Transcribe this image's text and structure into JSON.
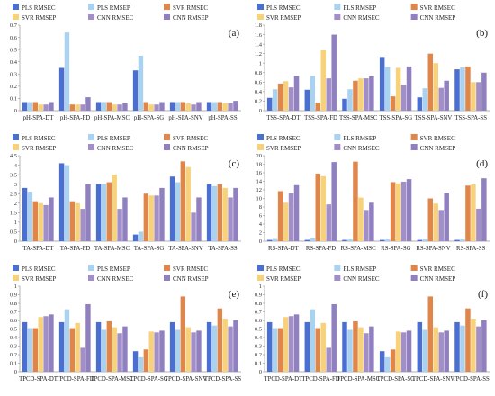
{
  "colors": [
    "#4A6FD0",
    "#A9D1F0",
    "#E0864A",
    "#F8D27A",
    "#A38FC8",
    "#9080C0"
  ],
  "legend_labels": [
    "PLS RMSEC",
    "PLS RMSEP",
    "SVR RMSEC",
    "SVR RMSEP",
    "CNN RMSEC",
    "CNN RMSEP"
  ],
  "chart_data": [
    {
      "type": "bar",
      "panel_label": "(a)",
      "categories": [
        "pH-SPA-DT",
        "pH-SPA-FD",
        "pH-SPA-MSC",
        "pH-SPA-SG",
        "pH-SPA-SNV",
        "pH-SPA-SS"
      ],
      "ylim": [
        0,
        0.7
      ],
      "yticks": [
        0,
        0.1,
        0.2,
        0.3,
        0.4,
        0.5,
        0.6,
        0.7
      ],
      "series": [
        {
          "name": "PLS RMSEC",
          "values": [
            0.07,
            0.35,
            0.07,
            0.33,
            0.07,
            0.07
          ]
        },
        {
          "name": "PLS RMSEP",
          "values": [
            0.07,
            0.64,
            0.07,
            0.45,
            0.07,
            0.07
          ]
        },
        {
          "name": "SVR RMSEC",
          "values": [
            0.07,
            0.05,
            0.07,
            0.07,
            0.07,
            0.07
          ]
        },
        {
          "name": "SVR RMSEP",
          "values": [
            0.05,
            0.05,
            0.05,
            0.05,
            0.06,
            0.06
          ]
        },
        {
          "name": "CNN RMSEC",
          "values": [
            0.05,
            0.05,
            0.05,
            0.05,
            0.05,
            0.06
          ]
        },
        {
          "name": "CNN RMSEP",
          "values": [
            0.07,
            0.11,
            0.06,
            0.07,
            0.07,
            0.08
          ]
        }
      ]
    },
    {
      "type": "bar",
      "panel_label": "(b)",
      "categories": [
        "TSS-SPA-DT",
        "TSS-SPA-FD",
        "TSS-SPA-MSC",
        "TSS-SPA-SG",
        "TSS-SPA-SNV",
        "TSS-SPA-SS"
      ],
      "ylim": [
        0,
        1.8
      ],
      "yticks": [
        0,
        0.2,
        0.4,
        0.6,
        0.8,
        1,
        1.2,
        1.4,
        1.6,
        1.8
      ],
      "series": [
        {
          "name": "PLS RMSEC",
          "values": [
            0.27,
            0.44,
            0.25,
            1.13,
            0.28,
            0.87
          ]
        },
        {
          "name": "PLS RMSEP",
          "values": [
            0.45,
            0.73,
            0.45,
            0.92,
            0.47,
            0.91
          ]
        },
        {
          "name": "SVR RMSEC",
          "values": [
            0.57,
            0.17,
            0.63,
            0.3,
            1.2,
            0.93
          ]
        },
        {
          "name": "SVR RMSEP",
          "values": [
            0.62,
            1.27,
            0.68,
            0.9,
            1.0,
            0.6
          ]
        },
        {
          "name": "CNN RMSEC",
          "values": [
            0.49,
            0.68,
            0.68,
            0.55,
            0.48,
            0.6
          ]
        },
        {
          "name": "CNN RMSEP",
          "values": [
            0.73,
            1.6,
            0.72,
            0.93,
            0.63,
            0.8
          ]
        }
      ]
    },
    {
      "type": "bar",
      "panel_label": "(c)",
      "categories": [
        "TA-SPA-DT",
        "TA-SPA-FD",
        "TA-SPA-MSC",
        "TA-SPA-SG",
        "TA-SPA-SNV",
        "TA-SPA-SS"
      ],
      "ylim": [
        0,
        4.5
      ],
      "yticks": [
        0,
        0.5,
        1,
        1.5,
        2,
        2.5,
        3,
        3.5,
        4,
        4.5
      ],
      "series": [
        {
          "name": "PLS RMSEC",
          "values": [
            2.8,
            4.1,
            3.0,
            0.35,
            3.4,
            3.0
          ]
        },
        {
          "name": "PLS RMSEP",
          "values": [
            2.6,
            4.0,
            3.0,
            0.5,
            3.1,
            2.9
          ]
        },
        {
          "name": "SVR RMSEC",
          "values": [
            2.1,
            2.1,
            3.1,
            2.5,
            4.2,
            3.0
          ]
        },
        {
          "name": "SVR RMSEP",
          "values": [
            2.0,
            2.0,
            3.5,
            2.4,
            3.9,
            2.8
          ]
        },
        {
          "name": "CNN RMSEC",
          "values": [
            1.9,
            1.7,
            1.7,
            2.4,
            1.5,
            2.3
          ]
        },
        {
          "name": "CNN RMSEP",
          "values": [
            2.3,
            3.0,
            2.3,
            2.8,
            2.3,
            2.8
          ]
        }
      ]
    },
    {
      "type": "bar",
      "panel_label": "(d)",
      "categories": [
        "RS-SPA-DT",
        "RS-SPA-FD",
        "RS-SPA-MSC",
        "RS-SPA-SG",
        "RS-SPA-SNV",
        "RS-SPA-SS"
      ],
      "ylim": [
        0,
        20
      ],
      "yticks": [
        0,
        2,
        4,
        6,
        8,
        10,
        12,
        14,
        16,
        18,
        20
      ],
      "series": [
        {
          "name": "PLS RMSEC",
          "values": [
            0.3,
            0.3,
            0.3,
            0.3,
            0.3,
            0.3
          ]
        },
        {
          "name": "PLS RMSEP",
          "values": [
            0.5,
            0.7,
            0.4,
            0.4,
            0.4,
            0.4
          ]
        },
        {
          "name": "SVR RMSEC",
          "values": [
            11.7,
            15.8,
            18.6,
            13.8,
            10.0,
            13.0
          ]
        },
        {
          "name": "SVR RMSEP",
          "values": [
            9.0,
            15.2,
            10.2,
            13.5,
            8.8,
            13.3
          ]
        },
        {
          "name": "CNN RMSEC",
          "values": [
            11.2,
            8.6,
            7.3,
            13.9,
            7.3,
            7.6
          ]
        },
        {
          "name": "CNN RMSEP",
          "values": [
            13.1,
            18.5,
            9.0,
            14.5,
            11.2,
            14.7
          ]
        }
      ]
    },
    {
      "type": "bar",
      "panel_label": "(e)",
      "categories": [
        "TPCD-SPA-DT",
        "TPCD-SPA-FD",
        "TPCD-SPA-MSC",
        "TPCD-SPA-SG",
        "TPCD-SPA-SNV",
        "TPCD-SPA-SS"
      ],
      "ylim": [
        0,
        1
      ],
      "yticks": [
        0,
        0.1,
        0.2,
        0.3,
        0.4,
        0.5,
        0.6,
        0.7,
        0.8,
        0.9,
        1
      ],
      "series": [
        {
          "name": "PLS RMSEC",
          "values": [
            0.58,
            0.58,
            0.58,
            0.24,
            0.58,
            0.58
          ]
        },
        {
          "name": "PLS RMSEP",
          "values": [
            0.51,
            0.73,
            0.49,
            0.17,
            0.49,
            0.54
          ]
        },
        {
          "name": "SVR RMSEC",
          "values": [
            0.51,
            0.51,
            0.59,
            0.26,
            0.88,
            0.74
          ]
        },
        {
          "name": "SVR RMSEP",
          "values": [
            0.64,
            0.57,
            0.52,
            0.47,
            0.52,
            0.62
          ]
        },
        {
          "name": "CNN RMSEC",
          "values": [
            0.65,
            0.28,
            0.45,
            0.46,
            0.46,
            0.53
          ]
        },
        {
          "name": "CNN RMSEP",
          "values": [
            0.67,
            0.79,
            0.53,
            0.48,
            0.48,
            0.6
          ]
        }
      ]
    },
    {
      "type": "bar",
      "panel_label": "(f)",
      "categories": [
        "TPCD-SPA-DT",
        "TPCD-SPA-FD",
        "TPCD-SPA-MSC",
        "TPCD-SPA-SG",
        "TPCD-SPA-SNV",
        "TPCD-SPA-SS"
      ],
      "ylim": [
        0,
        1
      ],
      "yticks": [
        0,
        0.1,
        0.2,
        0.3,
        0.4,
        0.5,
        0.6,
        0.7,
        0.8,
        0.9,
        1
      ],
      "series": [
        {
          "name": "PLS RMSEC",
          "values": [
            0.58,
            0.58,
            0.58,
            0.24,
            0.58,
            0.58
          ]
        },
        {
          "name": "PLS RMSEP",
          "values": [
            0.51,
            0.73,
            0.49,
            0.17,
            0.49,
            0.54
          ]
        },
        {
          "name": "SVR RMSEC",
          "values": [
            0.51,
            0.51,
            0.59,
            0.26,
            0.88,
            0.74
          ]
        },
        {
          "name": "SVR RMSEP",
          "values": [
            0.64,
            0.57,
            0.52,
            0.47,
            0.52,
            0.62
          ]
        },
        {
          "name": "CNN RMSEC",
          "values": [
            0.65,
            0.28,
            0.45,
            0.46,
            0.46,
            0.53
          ]
        },
        {
          "name": "CNN RMSEP",
          "values": [
            0.67,
            0.79,
            0.53,
            0.48,
            0.48,
            0.6
          ]
        }
      ]
    }
  ]
}
